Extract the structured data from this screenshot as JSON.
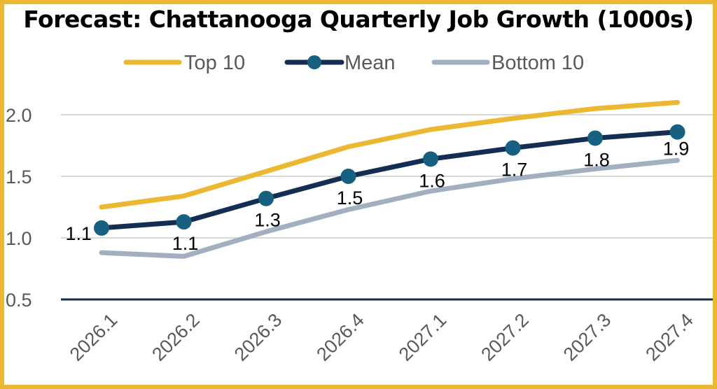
{
  "chart_data": {
    "type": "line",
    "title": "Forecast: Chattanooga Quarterly Job Growth (1000s)",
    "xlabel": "",
    "ylabel": "",
    "categories": [
      "2026.1",
      "2026.2",
      "2026.3",
      "2026.4",
      "2027.1",
      "2027.2",
      "2027.3",
      "2027.4"
    ],
    "ylim": [
      0.5,
      2.0
    ],
    "yticks": [
      "0.5",
      "1.0",
      "1.5",
      "2.0"
    ],
    "grid": true,
    "legend": "top",
    "series": [
      {
        "name": "Top 10",
        "color": "#ECB731",
        "markers": false,
        "values": [
          1.25,
          1.34,
          1.54,
          1.74,
          1.88,
          1.97,
          2.05,
          2.1
        ]
      },
      {
        "name": "Mean",
        "color": "#132E52",
        "marker_color": "#17607F",
        "markers": true,
        "values": [
          1.08,
          1.13,
          1.32,
          1.5,
          1.64,
          1.73,
          1.81,
          1.86
        ],
        "data_labels": [
          "1.1",
          "1.1",
          "1.3",
          "1.5",
          "1.6",
          "1.7",
          "1.8",
          "1.9"
        ]
      },
      {
        "name": "Bottom 10",
        "color": "#A2AFC0",
        "markers": false,
        "values": [
          0.88,
          0.85,
          1.05,
          1.23,
          1.38,
          1.48,
          1.56,
          1.63
        ]
      }
    ]
  }
}
